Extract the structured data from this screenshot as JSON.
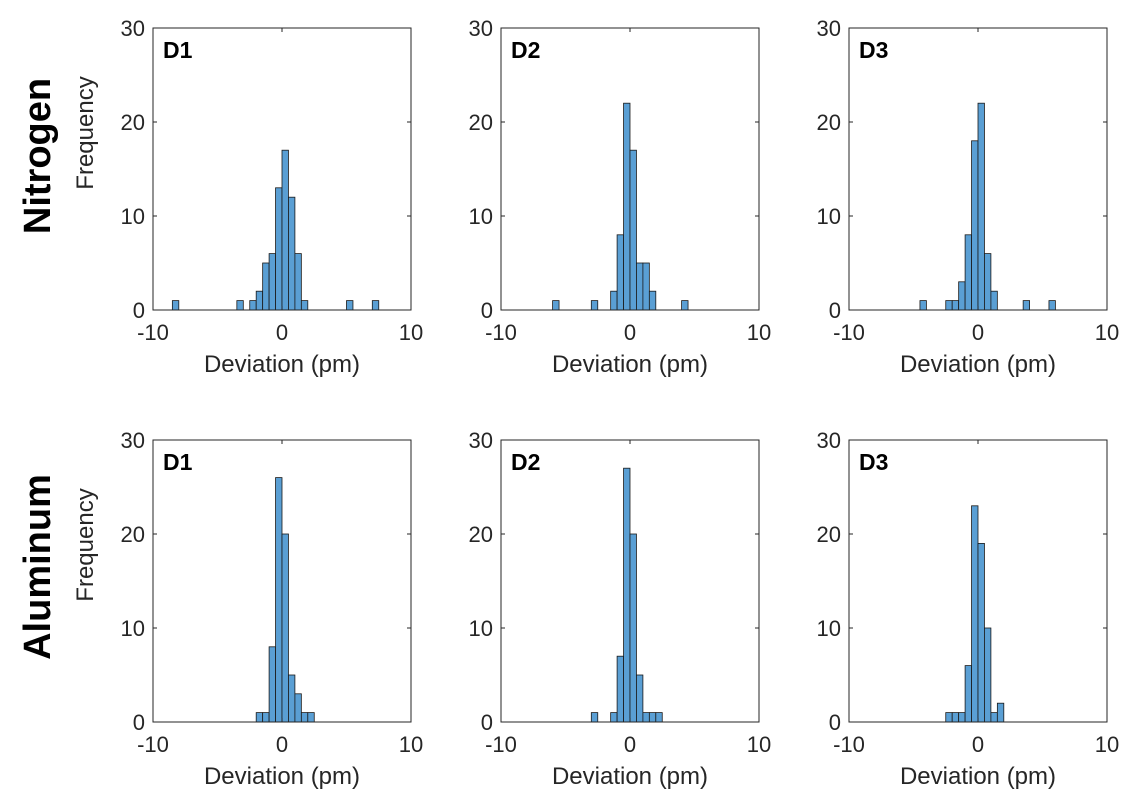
{
  "figure": {
    "row_labels": [
      "Nitrogen",
      "Aluminum"
    ]
  },
  "style": {
    "bar_fill": "#5a9fd4",
    "bar_edge": "#1a1a1a",
    "axis_color": "#262626"
  },
  "chart_data": [
    {
      "type": "bar",
      "panel": "D1",
      "row": "Nitrogen",
      "xlabel": "Deviation (pm)",
      "ylabel": "Frequency",
      "xlim": [
        -10,
        10
      ],
      "ylim": [
        0,
        30
      ],
      "xticks": [
        -10,
        0,
        10
      ],
      "yticks": [
        0,
        10,
        20,
        30
      ],
      "bin_width": 0.5,
      "bins": [
        {
          "x": -8.25,
          "y": 1
        },
        {
          "x": -3.25,
          "y": 1
        },
        {
          "x": -2.25,
          "y": 1
        },
        {
          "x": -1.75,
          "y": 2
        },
        {
          "x": -1.25,
          "y": 5
        },
        {
          "x": -0.75,
          "y": 6
        },
        {
          "x": -0.25,
          "y": 13
        },
        {
          "x": 0.25,
          "y": 17
        },
        {
          "x": 0.75,
          "y": 12
        },
        {
          "x": 1.25,
          "y": 6
        },
        {
          "x": 1.75,
          "y": 1
        },
        {
          "x": 5.25,
          "y": 1
        },
        {
          "x": 7.25,
          "y": 1
        }
      ]
    },
    {
      "type": "bar",
      "panel": "D2",
      "row": "Nitrogen",
      "xlabel": "Deviation (pm)",
      "ylabel": "",
      "xlim": [
        -10,
        10
      ],
      "ylim": [
        0,
        30
      ],
      "xticks": [
        -10,
        0,
        10
      ],
      "yticks": [
        0,
        10,
        20,
        30
      ],
      "bin_width": 0.5,
      "bins": [
        {
          "x": -5.75,
          "y": 1
        },
        {
          "x": -2.75,
          "y": 1
        },
        {
          "x": -1.25,
          "y": 2
        },
        {
          "x": -0.75,
          "y": 8
        },
        {
          "x": -0.25,
          "y": 22
        },
        {
          "x": 0.25,
          "y": 17
        },
        {
          "x": 0.75,
          "y": 5
        },
        {
          "x": 1.25,
          "y": 5
        },
        {
          "x": 1.75,
          "y": 2
        },
        {
          "x": 4.25,
          "y": 1
        }
      ]
    },
    {
      "type": "bar",
      "panel": "D3",
      "row": "Nitrogen",
      "xlabel": "Deviation (pm)",
      "ylabel": "",
      "xlim": [
        -10,
        10
      ],
      "ylim": [
        0,
        30
      ],
      "xticks": [
        -10,
        0,
        10
      ],
      "yticks": [
        0,
        10,
        20,
        30
      ],
      "bin_width": 0.5,
      "bins": [
        {
          "x": -4.25,
          "y": 1
        },
        {
          "x": -2.25,
          "y": 1
        },
        {
          "x": -1.75,
          "y": 1
        },
        {
          "x": -1.25,
          "y": 3
        },
        {
          "x": -0.75,
          "y": 8
        },
        {
          "x": -0.25,
          "y": 18
        },
        {
          "x": 0.25,
          "y": 22
        },
        {
          "x": 0.75,
          "y": 6
        },
        {
          "x": 1.25,
          "y": 2
        },
        {
          "x": 3.75,
          "y": 1
        },
        {
          "x": 5.75,
          "y": 1
        }
      ]
    },
    {
      "type": "bar",
      "panel": "D1",
      "row": "Aluminum",
      "xlabel": "Deviation (pm)",
      "ylabel": "Frequency",
      "xlim": [
        -10,
        10
      ],
      "ylim": [
        0,
        30
      ],
      "xticks": [
        -10,
        0,
        10
      ],
      "yticks": [
        0,
        10,
        20,
        30
      ],
      "bin_width": 0.5,
      "bins": [
        {
          "x": -1.75,
          "y": 1
        },
        {
          "x": -1.25,
          "y": 1
        },
        {
          "x": -0.75,
          "y": 8
        },
        {
          "x": -0.25,
          "y": 26
        },
        {
          "x": 0.25,
          "y": 20
        },
        {
          "x": 0.75,
          "y": 5
        },
        {
          "x": 1.25,
          "y": 3
        },
        {
          "x": 1.75,
          "y": 1
        },
        {
          "x": 2.25,
          "y": 1
        }
      ]
    },
    {
      "type": "bar",
      "panel": "D2",
      "row": "Aluminum",
      "xlabel": "Deviation (pm)",
      "ylabel": "",
      "xlim": [
        -10,
        10
      ],
      "ylim": [
        0,
        30
      ],
      "xticks": [
        -10,
        0,
        10
      ],
      "yticks": [
        0,
        10,
        20,
        30
      ],
      "bin_width": 0.5,
      "bins": [
        {
          "x": -2.75,
          "y": 1
        },
        {
          "x": -1.25,
          "y": 1
        },
        {
          "x": -0.75,
          "y": 7
        },
        {
          "x": -0.25,
          "y": 27
        },
        {
          "x": 0.25,
          "y": 20
        },
        {
          "x": 0.75,
          "y": 5
        },
        {
          "x": 1.25,
          "y": 1
        },
        {
          "x": 1.75,
          "y": 1
        },
        {
          "x": 2.25,
          "y": 1
        }
      ]
    },
    {
      "type": "bar",
      "panel": "D3",
      "row": "Aluminum",
      "xlabel": "Deviation (pm)",
      "ylabel": "",
      "xlim": [
        -10,
        10
      ],
      "ylim": [
        0,
        30
      ],
      "xticks": [
        -10,
        0,
        10
      ],
      "yticks": [
        0,
        10,
        20,
        30
      ],
      "bin_width": 0.5,
      "bins": [
        {
          "x": -2.25,
          "y": 1
        },
        {
          "x": -1.75,
          "y": 1
        },
        {
          "x": -1.25,
          "y": 1
        },
        {
          "x": -0.75,
          "y": 6
        },
        {
          "x": -0.25,
          "y": 23
        },
        {
          "x": 0.25,
          "y": 19
        },
        {
          "x": 0.75,
          "y": 10
        },
        {
          "x": 1.25,
          "y": 1
        },
        {
          "x": 1.75,
          "y": 2
        }
      ]
    }
  ]
}
